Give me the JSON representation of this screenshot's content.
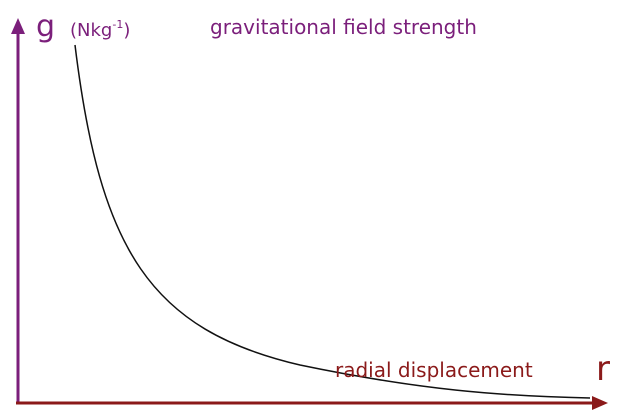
{
  "y_axis": {
    "symbol": "g",
    "unit_open": "(Nkg",
    "unit_superscript": "-1",
    "unit_close": ")",
    "label": "gravitational field strength"
  },
  "x_axis": {
    "label": "radial displacement",
    "symbol": "r"
  }
}
